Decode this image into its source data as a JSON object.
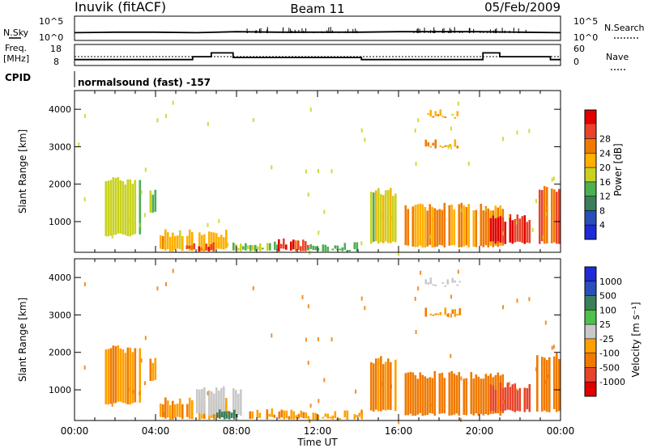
{
  "header": {
    "station": "Inuvik  (fitACF)",
    "beam": "Beam 11",
    "date": "05/Feb/2009"
  },
  "top_panels": {
    "nsky_label": "N.Sky",
    "nsky_ticks": [
      "10^5",
      "10^0"
    ],
    "nsearch_label": "N.Search",
    "nsearch_ticks": [
      "10^5",
      "10^0"
    ],
    "freq_label": "Freq.",
    "freq_unit": "[MHz]",
    "freq_ticks": [
      "18",
      "8"
    ],
    "nave_label": "Nave",
    "nave_ticks": [
      "60",
      "0"
    ],
    "cpid_label": "CPID",
    "cpid_value": "normalsound (fast) -157"
  },
  "colors": {
    "power_scale": [
      "#1f2bd6",
      "#2a4fb8",
      "#3a7e5a",
      "#4caf50",
      "#c8d21e",
      "#ffb000",
      "#f07a00",
      "#e8442a",
      "#e00000"
    ],
    "velocity_scale": [
      "#e00000",
      "#e8442a",
      "#f07a00",
      "#ffa000",
      "#c8c8c8",
      "#4cc24a",
      "#3a7e5a",
      "#2a4fb8",
      "#1f2bd6"
    ]
  },
  "chart_data": [
    {
      "type": "line",
      "title": "N.Sky / N.Search",
      "x": [
        "00:00",
        "02:00",
        "04:00",
        "06:00",
        "08:00",
        "10:00",
        "12:00",
        "14:00",
        "16:00",
        "18:00",
        "20:00",
        "22:00",
        "24:00"
      ],
      "series": [
        {
          "name": "N.Sky",
          "values": [
            1.6,
            1.7,
            1.7,
            1.6,
            1.8,
            1.7,
            1.7,
            1.7,
            1.8,
            1.8,
            1.8,
            1.7,
            1.6
          ]
        }
      ],
      "ylim": [
        0,
        5
      ]
    },
    {
      "type": "line",
      "title": "Freq.",
      "ylabel": "[MHz]",
      "x": [
        "00:00",
        "05:10",
        "05:50",
        "06:45",
        "07:50",
        "14:10",
        "20:10",
        "21:00",
        "23:30",
        "24:00"
      ],
      "series": [
        {
          "name": "Freq.",
          "values": [
            10.8,
            10.8,
            12.2,
            14.0,
            11.8,
            10.8,
            14.0,
            12.2,
            10.8,
            10.8
          ]
        }
      ],
      "ylim": [
        8,
        18
      ]
    },
    {
      "type": "heatmap",
      "xlabel": "",
      "ylabel": "Slant Range [km]",
      "colorbar_label": "Power [dB]",
      "colorbar_ticks": [
        "4",
        "8",
        "12",
        "16",
        "20",
        "24",
        "28"
      ],
      "xlim_hours": [
        0,
        24
      ],
      "ylim": [
        180,
        4500
      ],
      "y_ticks": [
        "4000",
        "3000",
        "2000",
        "1000"
      ],
      "regions": [
        {
          "t0": 1.5,
          "t1": 3.2,
          "r0": 600,
          "r1": 2200,
          "value": 16
        },
        {
          "t0": 3.7,
          "t1": 4.0,
          "r0": 1200,
          "r1": 1900,
          "value": 14
        },
        {
          "t0": 4.2,
          "t1": 7.5,
          "r0": 200,
          "r1": 800,
          "value": 20
        },
        {
          "t0": 5.5,
          "t1": 7.2,
          "r0": 200,
          "r1": 450,
          "value": 26
        },
        {
          "t0": 7.8,
          "t1": 10.0,
          "r0": 200,
          "r1": 500,
          "value": 14
        },
        {
          "t0": 9.8,
          "t1": 11.5,
          "r0": 200,
          "r1": 550,
          "value": 28
        },
        {
          "t0": 11.5,
          "t1": 14.2,
          "r0": 200,
          "r1": 450,
          "value": 12
        },
        {
          "t0": 14.6,
          "t1": 15.8,
          "r0": 400,
          "r1": 1900,
          "value": 16
        },
        {
          "t0": 16.3,
          "t1": 21.2,
          "r0": 300,
          "r1": 1500,
          "value": 22
        },
        {
          "t0": 20.5,
          "t1": 22.5,
          "r0": 400,
          "r1": 1200,
          "value": 28
        },
        {
          "t0": 22.8,
          "t1": 23.9,
          "r0": 400,
          "r1": 2000,
          "value": 24
        },
        {
          "t0": 17.3,
          "t1": 19.0,
          "r0": 3800,
          "r1": 4000,
          "value": 20
        },
        {
          "t0": 17.3,
          "t1": 19.0,
          "r0": 2950,
          "r1": 3200,
          "value": 20
        }
      ]
    },
    {
      "type": "heatmap",
      "xlabel": "Time UT",
      "ylabel": "Slant Range [km]",
      "colorbar_label": "Velocity [m s⁻¹]",
      "colorbar_ticks": [
        "-1000",
        "-500",
        "-100",
        "-25",
        "25",
        "100",
        "500",
        "1000"
      ],
      "x_ticks": [
        "00:00",
        "04:00",
        "08:00",
        "12:00",
        "16:00",
        "20:00",
        "00:00"
      ],
      "xlim_hours": [
        0,
        24
      ],
      "ylim": [
        180,
        4500
      ],
      "y_ticks": [
        "4000",
        "3000",
        "2000",
        "1000"
      ],
      "regions": [
        {
          "t0": 1.5,
          "t1": 3.2,
          "r0": 600,
          "r1": 2200,
          "value": -100
        },
        {
          "t0": 3.7,
          "t1": 4.0,
          "r0": 1200,
          "r1": 1900,
          "value": -100
        },
        {
          "t0": 4.2,
          "t1": 7.5,
          "r0": 200,
          "r1": 800,
          "value": -100
        },
        {
          "t0": 6.0,
          "t1": 8.2,
          "r0": 300,
          "r1": 1100,
          "value": 20
        },
        {
          "t0": 7.0,
          "t1": 8.0,
          "r0": 200,
          "r1": 550,
          "value": 150
        },
        {
          "t0": 8.5,
          "t1": 11.5,
          "r0": 200,
          "r1": 500,
          "value": -100
        },
        {
          "t0": 11.5,
          "t1": 14.2,
          "r0": 200,
          "r1": 450,
          "value": -50
        },
        {
          "t0": 14.6,
          "t1": 15.8,
          "r0": 400,
          "r1": 1900,
          "value": -100
        },
        {
          "t0": 16.3,
          "t1": 21.2,
          "r0": 300,
          "r1": 1500,
          "value": -300
        },
        {
          "t0": 20.5,
          "t1": 22.5,
          "r0": 400,
          "r1": 1200,
          "value": -800
        },
        {
          "t0": 22.8,
          "t1": 23.9,
          "r0": 400,
          "r1": 2000,
          "value": -200
        },
        {
          "t0": 17.3,
          "t1": 19.0,
          "r0": 3800,
          "r1": 4000,
          "value": 20
        },
        {
          "t0": 17.3,
          "t1": 19.0,
          "r0": 2950,
          "r1": 3200,
          "value": -100
        }
      ]
    }
  ],
  "axis_labels": {
    "x_title": "Time UT",
    "x_ticks": [
      "00:00",
      "04:00",
      "08:00",
      "12:00",
      "16:00",
      "20:00",
      "00:00"
    ]
  }
}
